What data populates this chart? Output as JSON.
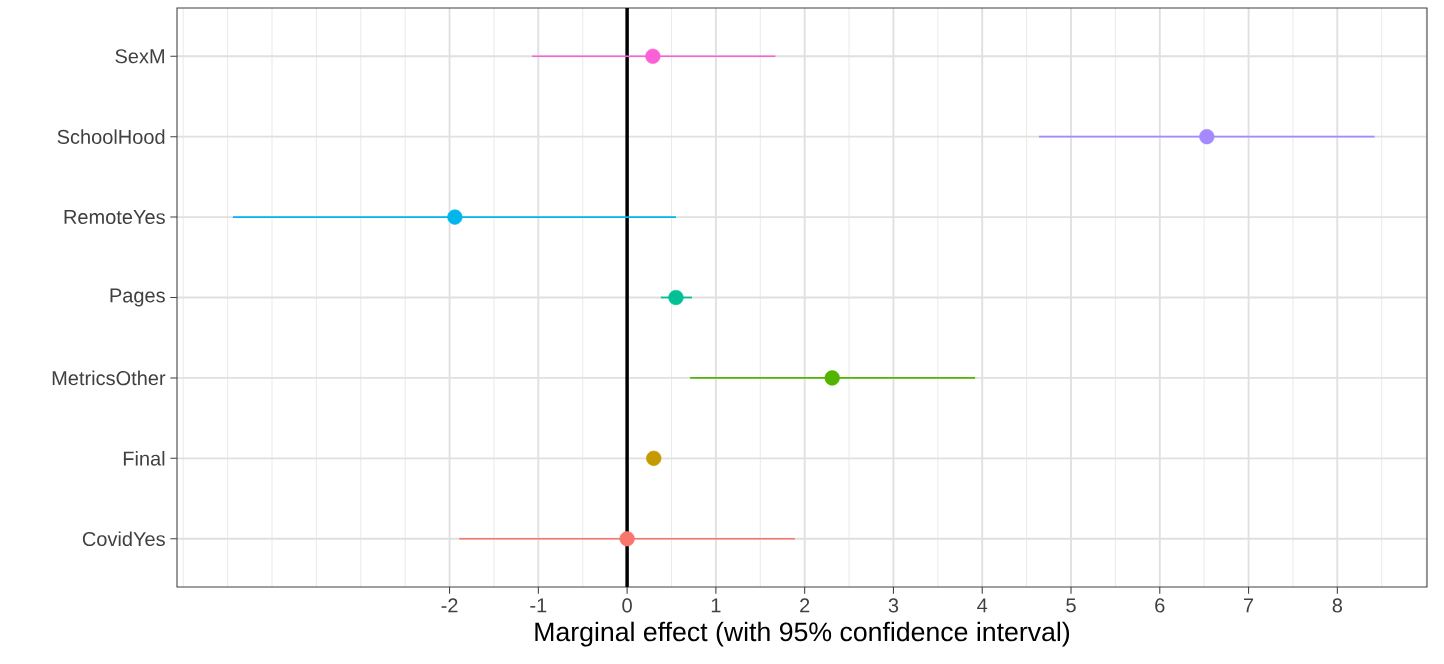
{
  "chart_data": {
    "type": "scatter",
    "orientation": "horizontal",
    "xlabel": "Marginal effect (with 95% confidence interval)",
    "categories": [
      "SexM",
      "SchoolHood",
      "RemoteYes",
      "Pages",
      "MetricsOther",
      "Final",
      "CovidYes"
    ],
    "values": [
      0.29,
      6.53,
      -1.94,
      0.55,
      2.31,
      0.3,
      0.0
    ],
    "errors": [
      [
        -1.07,
        1.67
      ],
      [
        4.64,
        8.42
      ],
      [
        -4.44,
        0.55
      ],
      [
        0.38,
        0.73
      ],
      [
        0.71,
        3.92
      ],
      null,
      [
        -1.89,
        1.89
      ]
    ],
    "colors": [
      "#fb61d7",
      "#a58aff",
      "#00b6eb",
      "#00c094",
      "#53b400",
      "#c49a00",
      "#f8766d"
    ],
    "xlim": [
      -5.07,
      9.01
    ],
    "xticks": [
      -2,
      -1,
      0,
      1,
      2,
      3,
      4,
      5,
      6,
      7,
      8
    ],
    "ref_lines": [
      {
        "axis": "x",
        "value": 0,
        "color": "#000000"
      }
    ],
    "grid": true,
    "marker": "circle"
  }
}
